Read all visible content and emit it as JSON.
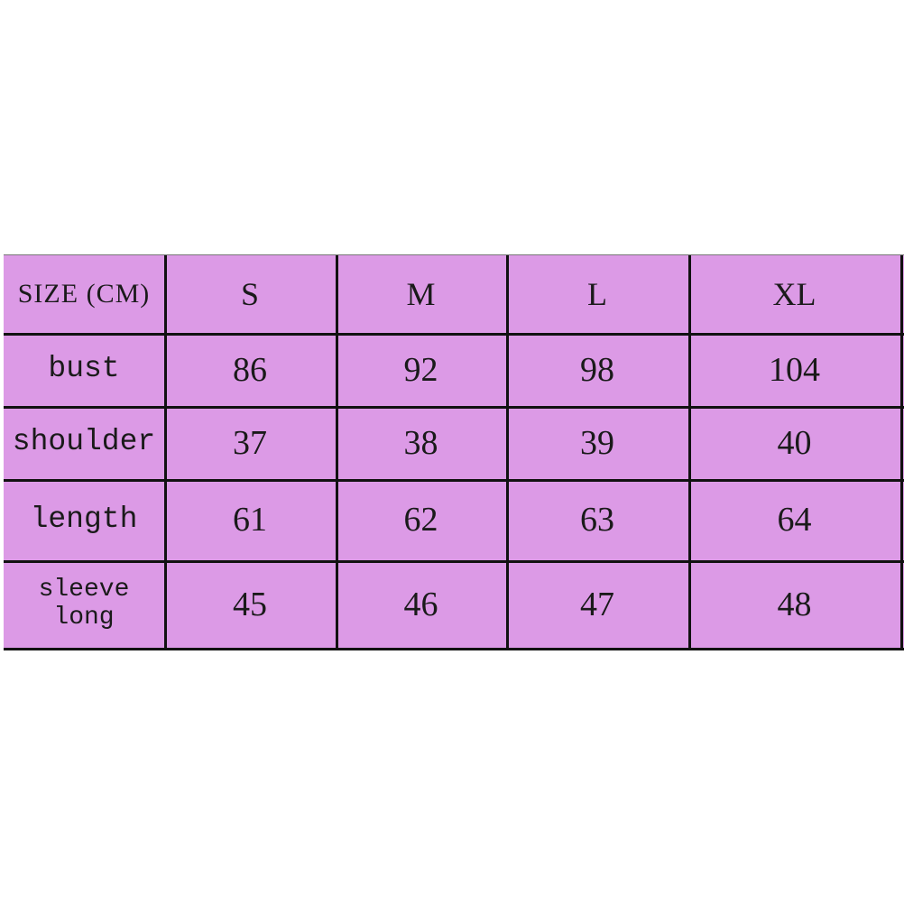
{
  "table": {
    "colors": {
      "cell_bg": "#dc9ae6",
      "border": "#111111"
    },
    "header": [
      "SIZE (CM)",
      "S",
      "M",
      "L",
      "XL"
    ],
    "rows": [
      {
        "label": "bust",
        "values": [
          "86",
          "92",
          "98",
          "104"
        ]
      },
      {
        "label": "shoulder",
        "values": [
          "37",
          "38",
          "39",
          "40"
        ]
      },
      {
        "label": "length",
        "values": [
          "61",
          "62",
          "63",
          "64"
        ]
      },
      {
        "label_line1": "sleeve",
        "label_line2": "long",
        "values": [
          "45",
          "46",
          "47",
          "48"
        ]
      }
    ]
  }
}
